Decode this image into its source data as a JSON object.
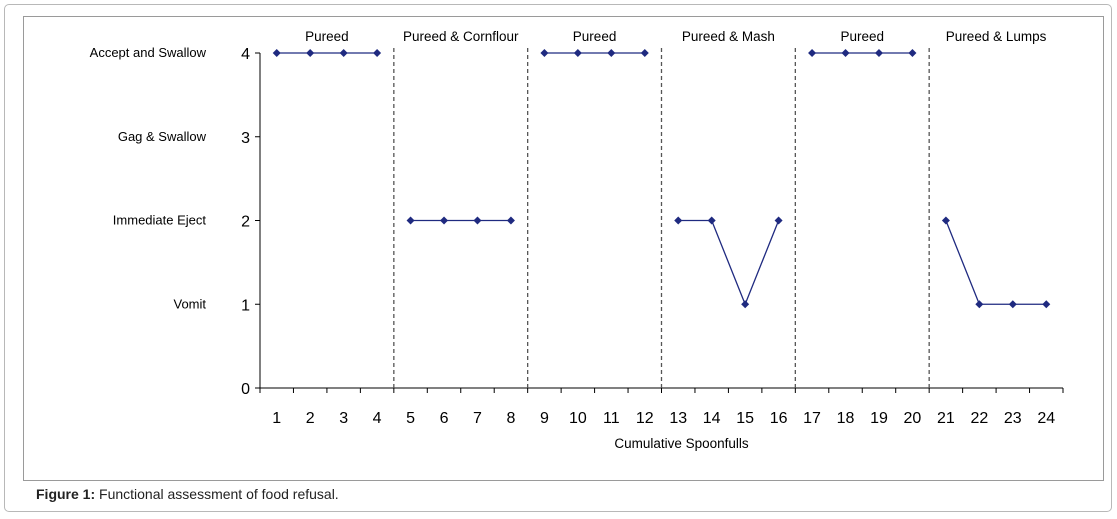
{
  "caption": {
    "label": "Figure 1:",
    "text": "Functional assessment of food refusal."
  },
  "chart_data": {
    "type": "line",
    "title": "",
    "xlabel": "Cumulative Spoonfulls",
    "ylabel": "",
    "ylim": [
      0,
      4
    ],
    "xlim": [
      1,
      24
    ],
    "x": [
      1,
      2,
      3,
      4,
      5,
      6,
      7,
      8,
      9,
      10,
      11,
      12,
      13,
      14,
      15,
      16,
      17,
      18,
      19,
      20,
      21,
      22,
      23,
      24
    ],
    "x_tick_labels": [
      "1",
      "2",
      "3",
      "4",
      "5",
      "6",
      "7",
      "8",
      "9",
      "10",
      "11",
      "12",
      "13",
      "14",
      "15",
      "16",
      "17",
      "18",
      "19",
      "20",
      "21",
      "22",
      "23",
      "24"
    ],
    "y_ticks": [
      0,
      1,
      2,
      3,
      4
    ],
    "y_tick_labels": [
      "0",
      "1",
      "2",
      "3",
      "4"
    ],
    "y_categories": [
      {
        "value": 4,
        "label": "Accept and Swallow"
      },
      {
        "value": 3,
        "label": "Gag & Swallow"
      },
      {
        "value": 2,
        "label": "Immediate Eject"
      },
      {
        "value": 1,
        "label": "Vomit"
      }
    ],
    "line_color": "#1f2a80",
    "phase_line_color": "#555555",
    "phases": [
      {
        "label": "Pureed",
        "start": 1,
        "end": 4,
        "values": [
          4,
          4,
          4,
          4
        ]
      },
      {
        "label": "Pureed & Cornflour",
        "start": 5,
        "end": 8,
        "values": [
          2,
          2,
          2,
          2
        ]
      },
      {
        "label": "Pureed",
        "start": 9,
        "end": 12,
        "values": [
          4,
          4,
          4,
          4
        ]
      },
      {
        "label": "Pureed & Mash",
        "start": 13,
        "end": 16,
        "values": [
          2,
          2,
          1,
          2
        ]
      },
      {
        "label": "Pureed",
        "start": 17,
        "end": 20,
        "values": [
          4,
          4,
          4,
          4
        ]
      },
      {
        "label": "Pureed & Lumps",
        "start": 21,
        "end": 24,
        "values": [
          2,
          1,
          1,
          1
        ]
      }
    ]
  }
}
